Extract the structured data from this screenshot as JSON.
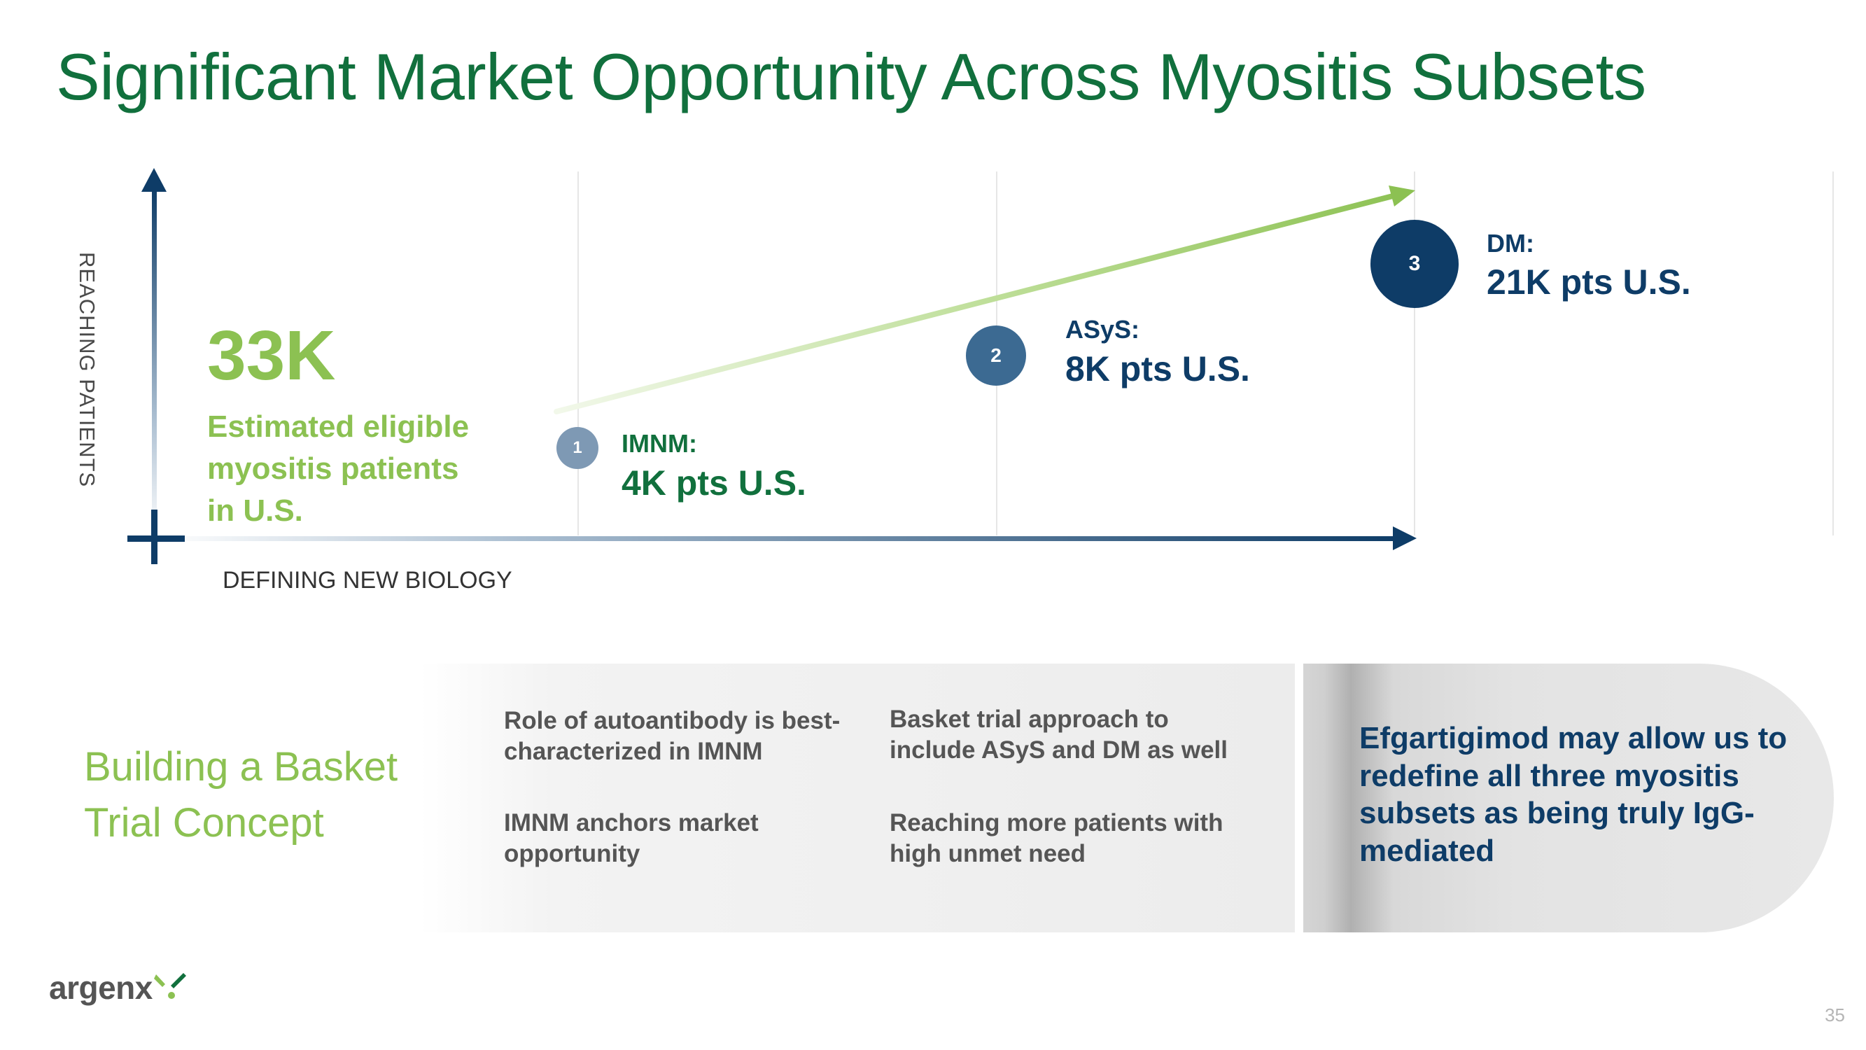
{
  "title": "Significant Market Opportunity Across Myositis Subsets",
  "chart": {
    "y_axis_label": "REACHING PATIENTS",
    "x_axis_label": "DEFINING NEW BIOLOGY",
    "total_value": "33K",
    "total_description": "Estimated eligible myositis patients in U.S.",
    "subsets": [
      {
        "number": "1",
        "label": "IMNM:",
        "value": "4K pts U.S."
      },
      {
        "number": "2",
        "label": "ASyS:",
        "value": "8K pts U.S."
      },
      {
        "number": "3",
        "label": "DM:",
        "value": "21K pts U.S."
      }
    ]
  },
  "basket": {
    "heading": "Building a Basket Trial Concept",
    "points": [
      "Role of autoantibody is best-characterized in IMNM",
      "Basket trial approach to include ASyS and DM as well",
      "IMNM anchors market opportunity",
      "Reaching more patients with high unmet need"
    ],
    "conclusion": "Efgartigimod may allow us to redefine all three myositis subsets as being truly IgG-mediated"
  },
  "footer": {
    "logo": "argenx",
    "page_number": "35"
  },
  "colors": {
    "green": "#11703d",
    "light_green": "#8cc152",
    "navy": "#0e3c67"
  }
}
